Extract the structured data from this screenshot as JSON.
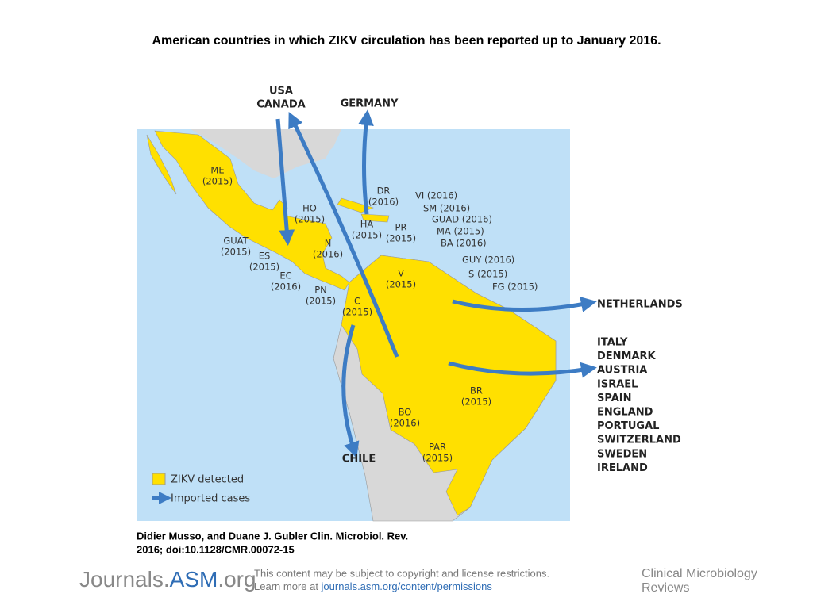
{
  "title": "American countries in which ZIKV circulation has been reported up to January 2016.",
  "map": {
    "countries": [
      {
        "code": "ME",
        "year": "(2015)"
      },
      {
        "code": "HO",
        "year": "(2015)"
      },
      {
        "code": "GUAT",
        "year": "(2015)"
      },
      {
        "code": "ES",
        "year": "(2015)"
      },
      {
        "code": "N",
        "year": "(2016)"
      },
      {
        "code": "EC",
        "year": "(2016)"
      },
      {
        "code": "PN",
        "year": "(2015)"
      },
      {
        "code": "DR",
        "year": "(2016)"
      },
      {
        "code": "HA",
        "year": "(2015)"
      },
      {
        "code": "PR",
        "year": "(2015)"
      },
      {
        "code": "V",
        "year": "(2015)"
      },
      {
        "code": "C",
        "year": "(2015)"
      },
      {
        "code": "BR",
        "year": "(2015)"
      },
      {
        "code": "BO",
        "year": "(2016)"
      },
      {
        "code": "PAR",
        "year": "(2015)"
      }
    ],
    "islands": [
      "VI (2016)",
      "SM (2016)",
      "GUAD (2016)",
      "MA (2015)",
      "BA (2016)"
    ],
    "guianas": [
      "GUY (2016)",
      "S (2015)",
      "FG (2015)"
    ],
    "destinations": {
      "north": [
        "USA",
        "CANADA"
      ],
      "germany": "GERMANY",
      "netherlands": "NETHERLANDS",
      "europe": [
        "ITALY",
        "DENMARK",
        "AUSTRIA",
        "ISRAEL",
        "SPAIN",
        "ENGLAND",
        "PORTUGAL",
        "SWITZERLAND",
        "SWEDEN",
        "IRELAND"
      ],
      "chile": "CHILE"
    },
    "legend": [
      "ZIKV detected",
      "Imported cases"
    ]
  },
  "citation": [
    "Didier Musso, and Duane J. Gubler Clin. Microbiol. Rev.",
    "2016; doi:10.1128/CMR.00072-15"
  ],
  "footer": {
    "logo": [
      "Journals.",
      "ASM",
      ".org"
    ],
    "notice": [
      "This content may be subject to copyright and license restrictions.",
      "Learn more at "
    ],
    "link": "journals.asm.org/content/permissions",
    "journal": [
      "Clinical Microbiology",
      "Reviews"
    ]
  }
}
